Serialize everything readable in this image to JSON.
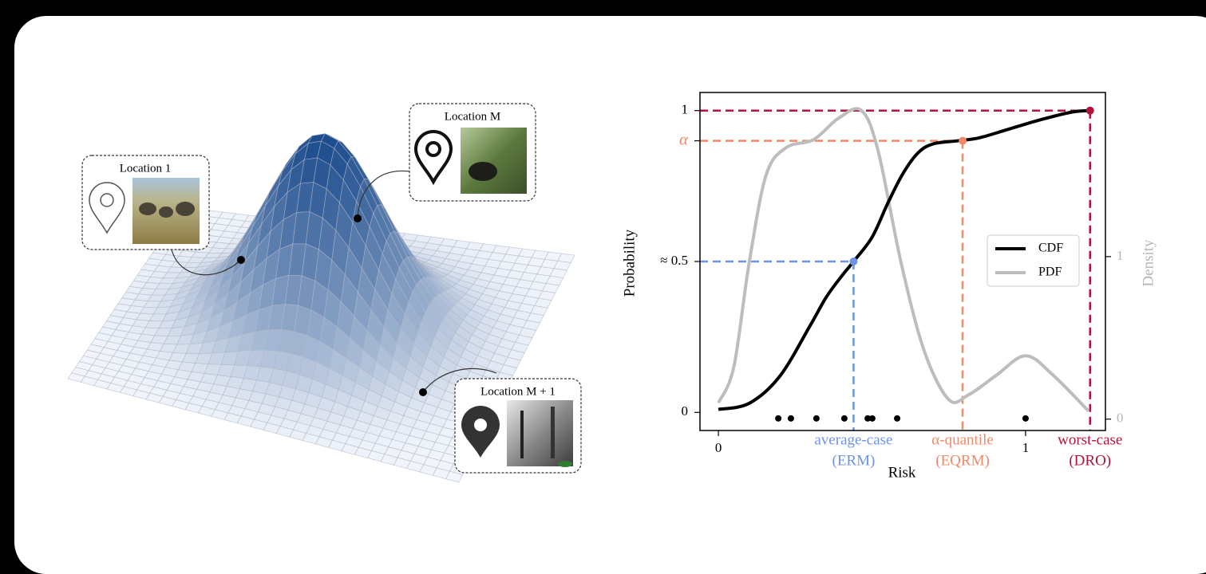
{
  "figure": {
    "callouts": [
      "Location 1",
      "Location M",
      "Location M + 1"
    ]
  },
  "chart_data": {
    "type": "line",
    "xlabel": "Risk",
    "ylabel": "Probability",
    "y2label": "Density",
    "xlim": [
      -0.06,
      1.26
    ],
    "ylim": [
      -0.06,
      1.06
    ],
    "y2lim": [
      -0.07,
      2.01
    ],
    "xticks": [
      0,
      1
    ],
    "yticks": [
      0,
      {
        "value": 0.5,
        "label": "≈ 0.5"
      },
      {
        "value": 0.9,
        "label": "α",
        "color": "#f08a66"
      },
      1
    ],
    "y2ticks": [
      0,
      1
    ],
    "legend": "right",
    "series": [
      {
        "name": "CDF",
        "color": "#000000",
        "x": [
          0,
          0.1,
          0.2,
          0.3,
          0.35,
          0.4,
          0.44,
          0.5,
          0.55,
          0.6,
          0.65,
          0.7,
          0.78,
          0.85,
          0.95,
          1.05,
          1.15,
          1.21
        ],
        "values": [
          0.01,
          0.03,
          0.12,
          0.29,
          0.38,
          0.45,
          0.5,
          0.58,
          0.69,
          0.79,
          0.86,
          0.89,
          0.9,
          0.91,
          0.94,
          0.97,
          0.995,
          1
        ]
      },
      {
        "name": "PDF",
        "color": "#bdbdbd",
        "axis": "y2",
        "x": [
          0,
          0.05,
          0.1,
          0.155,
          0.22,
          0.31,
          0.39,
          0.465,
          0.52,
          0.595,
          0.67,
          0.75,
          0.815,
          0.905,
          1,
          1.09,
          1.205
        ],
        "values": [
          0.1,
          0.32,
          0.96,
          1.5,
          1.67,
          1.72,
          1.85,
          1.9,
          1.65,
          0.96,
          0.42,
          0.12,
          0.15,
          0.27,
          0.39,
          0.27,
          0.05
        ]
      }
    ],
    "samples": {
      "x": [
        0.195,
        0.236,
        0.319,
        0.41,
        0.486,
        0.501,
        0.582,
        1
      ],
      "y": [
        -0.02,
        -0.02,
        -0.02,
        -0.02,
        -0.02,
        -0.02,
        -0.02,
        -0.02
      ]
    },
    "markers": [
      {
        "x": 0.44,
        "y": 0.5,
        "color": "#6d94e6",
        "label": "average-case",
        "sublabel": "(ERM)"
      },
      {
        "x": 0.795,
        "y": 0.9,
        "color": "#f08a66",
        "label": "α-quantile",
        "sublabel": "(EQRM)"
      },
      {
        "x": 1.21,
        "y": 1,
        "color": "#b5123a",
        "label": "worst-case",
        "sublabel": "(DRO)"
      }
    ]
  }
}
